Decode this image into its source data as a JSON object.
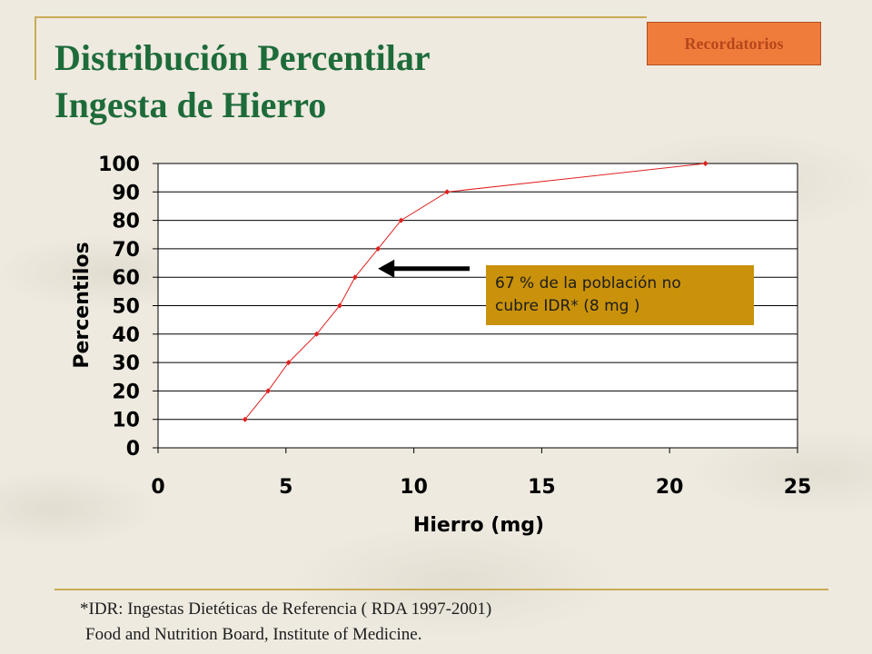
{
  "slide": {
    "title_line1": "Distribución Percentilar",
    "title_line2": "Ingesta de Hierro",
    "badge_label": "Recordatorios",
    "annotation_line1": "67 % de la población no",
    "annotation_line2": "cubre IDR* (8 mg )",
    "footnote_line1": "*IDR: Ingestas Dietéticas de Referencia ( RDA 1997-2001)",
    "footnote_line2": "Food and Nutrition Board, Institute of  Medicine.",
    "accent_color": "#c9ab57",
    "title_color": "#1e6b3a",
    "badge_color": "#f07c3c",
    "annotation_color": "#c9920a"
  },
  "chart_data": {
    "type": "line",
    "xlabel": "Hierro (mg)",
    "ylabel": "Percentilos",
    "xlim": [
      0,
      25
    ],
    "ylim": [
      0,
      100
    ],
    "xticks": [
      0,
      5,
      10,
      15,
      20,
      25
    ],
    "yticks": [
      0,
      10,
      20,
      30,
      40,
      50,
      60,
      70,
      80,
      90,
      100
    ],
    "grid": "horizontal",
    "series": [
      {
        "color": "#e02020",
        "points": [
          {
            "x": 3.4,
            "y": 10
          },
          {
            "x": 4.3,
            "y": 20
          },
          {
            "x": 5.1,
            "y": 30
          },
          {
            "x": 6.2,
            "y": 40
          },
          {
            "x": 7.1,
            "y": 50
          },
          {
            "x": 7.7,
            "y": 60
          },
          {
            "x": 8.6,
            "y": 70
          },
          {
            "x": 9.5,
            "y": 80
          },
          {
            "x": 11.3,
            "y": 90
          },
          {
            "x": 21.4,
            "y": 100
          }
        ]
      }
    ],
    "arrow": {
      "points_to": {
        "x": 8.6,
        "y": 63
      },
      "label_ref": "annotation"
    }
  }
}
